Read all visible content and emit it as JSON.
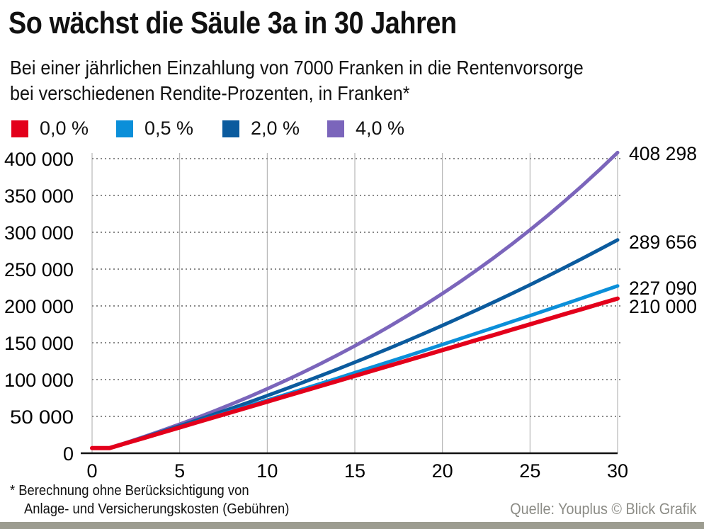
{
  "title": "So wächst die Säule 3a in 30 Jahren",
  "subtitle_line1": "Bei einer jährlichen Einzahlung von 7000 Franken in die Rentenvorsorge",
  "subtitle_line2": "bei verschiedenen Rendite-Prozenten, in Franken*",
  "footnote_line1": "* Berechnung ohne Berücksichtigung von",
  "footnote_line2": "Anlage- und Versicherungskosten (Gebühren)",
  "source": "Quelle: Youplus © Blick Grafik",
  "chart_data": {
    "type": "line",
    "title": "So wächst die Säule 3a in 30 Jahren",
    "xlim": [
      0,
      30
    ],
    "ylim": [
      0,
      400000
    ],
    "x_ticks": [
      0,
      5,
      10,
      15,
      20,
      25,
      30
    ],
    "x_tick_labels": [
      "0",
      "5",
      "10",
      "15",
      "20",
      "25",
      "30"
    ],
    "y_ticks": [
      0,
      50000,
      100000,
      150000,
      200000,
      250000,
      300000,
      350000,
      400000
    ],
    "y_tick_labels": [
      "0",
      "50 000",
      "100 000",
      "150 000",
      "200 000",
      "250 000",
      "300 000",
      "350 000",
      "400 000"
    ],
    "grid": {
      "horizontal": "dotted",
      "vertical": "solid"
    },
    "legend_position": "top-left",
    "x": [
      0,
      1,
      2,
      3,
      4,
      5,
      6,
      7,
      8,
      9,
      10,
      11,
      12,
      13,
      14,
      15,
      16,
      17,
      18,
      19,
      20,
      21,
      22,
      23,
      24,
      25,
      26,
      27,
      28,
      29,
      30
    ],
    "series": [
      {
        "name": "0,0 %",
        "color": "#e3001b",
        "end_label": "210 000",
        "values": [
          7000,
          7000,
          14000,
          21000,
          28000,
          35000,
          42000,
          49000,
          56000,
          63000,
          70000,
          77000,
          84000,
          91000,
          98000,
          105000,
          112000,
          119000,
          126000,
          133000,
          140000,
          147000,
          154000,
          161000,
          168000,
          175000,
          182000,
          189000,
          196000,
          203000,
          210000
        ]
      },
      {
        "name": "0,5 %",
        "color": "#0b8fd9",
        "end_label": "227 090",
        "values": [
          7000,
          7035,
          14105,
          21211,
          28352,
          35528,
          42742,
          49989,
          57275,
          64597,
          71954,
          79349,
          86781,
          94249,
          101756,
          109300,
          116881,
          124501,
          132158,
          139854,
          147589,
          155361,
          163173,
          171024,
          178914,
          186844,
          194813,
          202822,
          210871,
          218960,
          227090
        ]
      },
      {
        "name": "2,0 %",
        "color": "#0b5b9e",
        "end_label": "289 656",
        "values": [
          7000,
          7140,
          14423,
          21851,
          29428,
          37157,
          45040,
          53081,
          61282,
          69648,
          78181,
          86885,
          95762,
          104818,
          114054,
          123475,
          133085,
          142886,
          152884,
          163082,
          173483,
          184093,
          194915,
          205953,
          217212,
          228696,
          240410,
          252358,
          264546,
          276977,
          289656
        ]
      },
      {
        "name": "4,0 %",
        "color": "#7b65bb",
        "end_label": "408 298",
        "values": [
          7000,
          7280,
          14851,
          22725,
          30914,
          39431,
          48288,
          57500,
          67080,
          77043,
          87404,
          98181,
          109388,
          121043,
          133165,
          145772,
          158883,
          172518,
          186699,
          201447,
          216784,
          232736,
          249325,
          266578,
          284521,
          303182,
          322590,
          342773,
          363764,
          385594,
          408298
        ]
      }
    ]
  }
}
